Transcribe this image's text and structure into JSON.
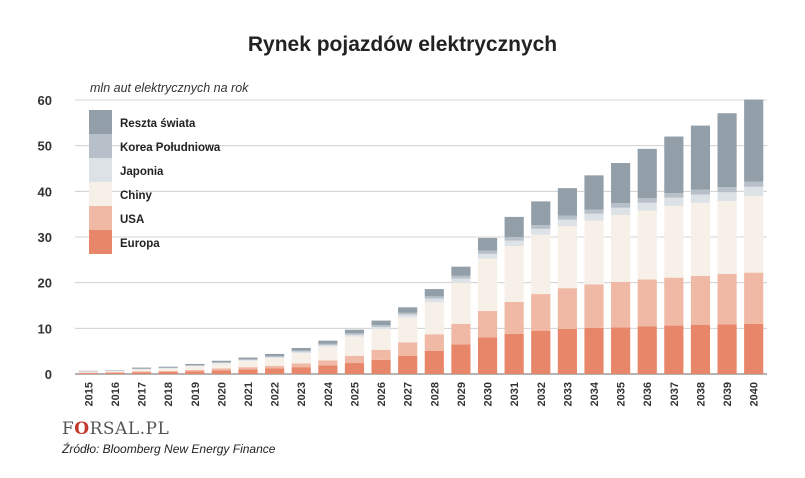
{
  "header": {
    "title": "Rynek pojazdów elektrycznych"
  },
  "logo": {
    "prefix": "F",
    "o": "O",
    "suffix": "RSAL.PL"
  },
  "source": {
    "text": "Źródło: Bloomberg New Energy Finance"
  },
  "chart_data": {
    "type": "bar",
    "stacked": true,
    "title": "Rynek pojazdów elektrycznych",
    "ylabel": "mln aut elektrycznych na rok",
    "xlabel": "",
    "ylim": [
      0,
      60
    ],
    "yticks": [
      0,
      10,
      20,
      30,
      40,
      50,
      60
    ],
    "grid": true,
    "legend_position": "top-left",
    "categories": [
      "2015",
      "2016",
      "2017",
      "2018",
      "2019",
      "2020",
      "2021",
      "2022",
      "2023",
      "2024",
      "2025",
      "2026",
      "2027",
      "2028",
      "2029",
      "2030",
      "2031",
      "2032",
      "2033",
      "2034",
      "2035",
      "2036",
      "2037",
      "2038",
      "2039",
      "2040"
    ],
    "series": [
      {
        "name": "Europa",
        "color": "#e8866a",
        "values": [
          0.2,
          0.3,
          0.4,
          0.5,
          0.6,
          0.8,
          1.0,
          1.2,
          1.5,
          1.9,
          2.4,
          3.1,
          4.0,
          5.1,
          6.5,
          8.0,
          8.8,
          9.5,
          9.9,
          10.1,
          10.2,
          10.4,
          10.6,
          10.8,
          10.9,
          11.0
        ]
      },
      {
        "name": "USA",
        "color": "#f0b9a5",
        "values": [
          0.1,
          0.1,
          0.2,
          0.2,
          0.3,
          0.4,
          0.5,
          0.6,
          0.8,
          1.1,
          1.6,
          2.2,
          2.9,
          3.6,
          4.5,
          5.8,
          7.0,
          8.0,
          8.9,
          9.5,
          10.0,
          10.3,
          10.5,
          10.7,
          11.0,
          11.2
        ]
      },
      {
        "name": "Chiny",
        "color": "#f7f0e8",
        "values": [
          0.2,
          0.2,
          0.4,
          0.5,
          0.8,
          1.1,
          1.4,
          1.7,
          2.3,
          3.0,
          4.2,
          4.5,
          5.5,
          7.0,
          9.0,
          11.5,
          12.2,
          13.0,
          13.6,
          14.0,
          14.6,
          15.1,
          15.7,
          16.0,
          16.0,
          16.8
        ]
      },
      {
        "name": "Japonia",
        "color": "#dde2e7",
        "values": [
          0.05,
          0.05,
          0.1,
          0.1,
          0.1,
          0.15,
          0.2,
          0.2,
          0.3,
          0.3,
          0.4,
          0.5,
          0.6,
          0.8,
          0.9,
          1.0,
          1.2,
          1.3,
          1.4,
          1.5,
          1.6,
          1.7,
          1.8,
          1.8,
          1.9,
          2.0
        ]
      },
      {
        "name": "Korea Południowa",
        "color": "#b7c0c8",
        "values": [
          0.05,
          0.05,
          0.1,
          0.1,
          0.1,
          0.1,
          0.1,
          0.2,
          0.2,
          0.3,
          0.3,
          0.4,
          0.4,
          0.5,
          0.6,
          0.7,
          0.8,
          0.8,
          0.9,
          0.9,
          1.0,
          1.0,
          1.0,
          1.1,
          1.1,
          1.1
        ]
      },
      {
        "name": "Reszta świata",
        "color": "#939fa8",
        "values": [
          0.1,
          0.1,
          0.2,
          0.2,
          0.3,
          0.35,
          0.4,
          0.5,
          0.6,
          0.7,
          0.8,
          1.0,
          1.2,
          1.6,
          2.0,
          2.8,
          4.4,
          5.2,
          6.0,
          7.5,
          8.8,
          10.8,
          12.4,
          14.0,
          16.2,
          18.0
        ]
      }
    ]
  }
}
